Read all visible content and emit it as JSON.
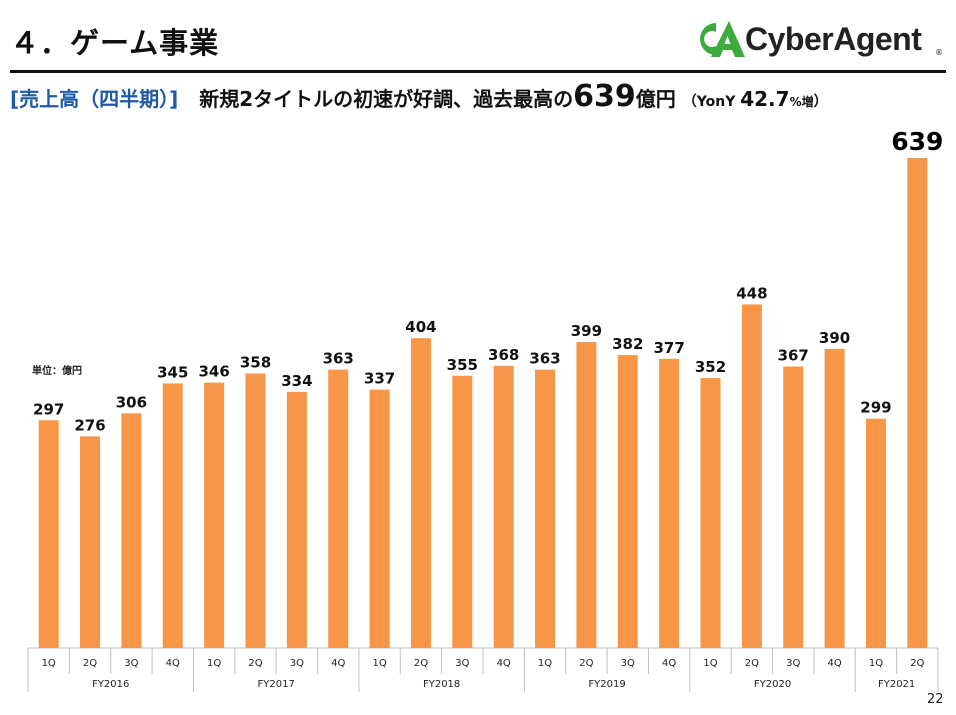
{
  "header": {
    "section_title": "４．ゲーム事業",
    "logo_text": "CyberAgent",
    "logo_registered": "®"
  },
  "headline": {
    "open_bracket": "[",
    "label": "売上高（四半期）",
    "close_bracket": "]",
    "text_main": "新規2タイトルの初速が好調、過去最高の",
    "value": "639",
    "value_unit": "億円",
    "paren_open": "（YonY ",
    "growth": "42.7",
    "growth_unit": "%増",
    "paren_close": "）"
  },
  "unit_label": "単位：億円",
  "page_number": "22",
  "colors": {
    "bar": "#f79646",
    "axis": "#bfbfbf",
    "text": "#111111",
    "highlight_text": "#000000"
  },
  "chart_data": {
    "type": "bar",
    "quarters": [
      "1Q",
      "2Q",
      "3Q",
      "4Q",
      "1Q",
      "2Q",
      "3Q",
      "4Q",
      "1Q",
      "2Q",
      "3Q",
      "4Q",
      "1Q",
      "2Q",
      "3Q",
      "4Q",
      "1Q",
      "2Q",
      "3Q",
      "4Q",
      "1Q",
      "2Q"
    ],
    "fiscal_years": [
      {
        "label": "FY2016",
        "count": 4
      },
      {
        "label": "FY2017",
        "count": 4
      },
      {
        "label": "FY2018",
        "count": 4
      },
      {
        "label": "FY2019",
        "count": 4
      },
      {
        "label": "FY2020",
        "count": 4
      },
      {
        "label": "FY2021",
        "count": 2
      }
    ],
    "values": [
      297,
      276,
      306,
      345,
      346,
      358,
      334,
      363,
      337,
      404,
      355,
      368,
      363,
      399,
      382,
      377,
      352,
      448,
      367,
      390,
      299,
      639
    ],
    "highlight_index": 21,
    "ylim": [
      0,
      650
    ],
    "grid": false,
    "legend": "none"
  }
}
